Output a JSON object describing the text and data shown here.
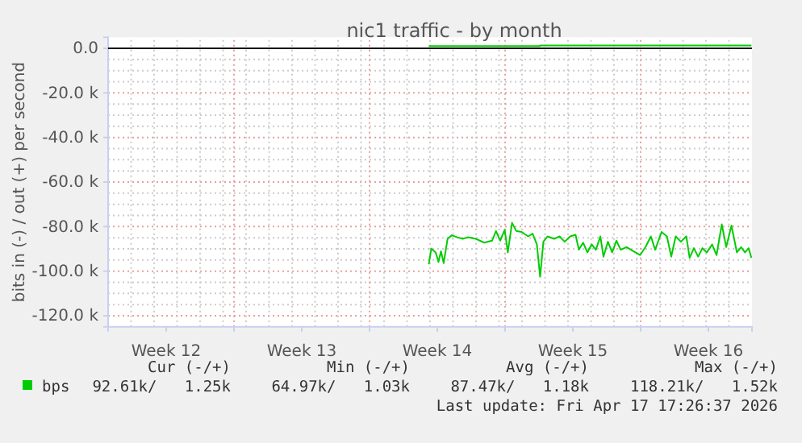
{
  "chart_data": {
    "type": "line",
    "title": "nic1 traffic - by month",
    "ylabel": "bits in (-) / out (+) per second",
    "xlim": [
      "2026-03-15T12:00",
      "2026-04-17T18:00"
    ],
    "xticks": [
      {
        "value": "2026-03-18T12:00",
        "label": "Week 12"
      },
      {
        "value": "2026-03-22",
        "label": null
      },
      {
        "value": "2026-03-25T12:00",
        "label": "Week 13"
      },
      {
        "value": "2026-03-29",
        "label": null
      },
      {
        "value": "2026-04-01T12:00",
        "label": "Week 14"
      },
      {
        "value": "2026-04-05",
        "label": null
      },
      {
        "value": "2026-04-08T12:00",
        "label": "Week 15"
      },
      {
        "value": "2026-04-12",
        "label": null
      },
      {
        "value": "2026-04-15T12:00",
        "label": "Week 16"
      }
    ],
    "ylim": [
      -125,
      5
    ],
    "yticks": [
      {
        "value": 0,
        "label": "0.0"
      },
      {
        "value": -20,
        "label": "-20.0 k"
      },
      {
        "value": -40,
        "label": "-40.0 k"
      },
      {
        "value": -60,
        "label": "-60.0 k"
      },
      {
        "value": -80,
        "label": "-80.0 k"
      },
      {
        "value": -100,
        "label": "-100.0 k"
      },
      {
        "value": -120,
        "label": "-120.0 k"
      }
    ],
    "grid": true,
    "legend": "bottom left",
    "ref_lines": [
      {
        "axis": "y",
        "value": 0,
        "color": "#000000"
      }
    ],
    "series": [
      {
        "name": "bps",
        "color": "#00cc00",
        "x": [
          "2026-04-01T01:26",
          "2026-04-01T04:34",
          "2026-04-01T10:05",
          "2026-04-01T13:26",
          "2026-04-01T16:34",
          "2026-04-01T19:55",
          "2026-04-02T00:43",
          "2026-04-02T06:00",
          "2026-04-02T12:43",
          "2026-04-02T19:26",
          "2026-04-03T01:55",
          "2026-04-03T12:00",
          "2026-04-03T22:05",
          "2026-04-04T07:55",
          "2026-04-04T12:43",
          "2026-04-04T18:00",
          "2026-04-04T23:31",
          "2026-04-05T03:22",
          "2026-04-05T08:38",
          "2026-04-05T13:55",
          "2026-04-05T20:38",
          "2026-04-06T04:34",
          "2026-04-06T10:05",
          "2026-04-06T15:22",
          "2026-04-06T19:26",
          "2026-04-06T23:31",
          "2026-04-07T04:34",
          "2026-04-07T12:43",
          "2026-04-07T19:26",
          "2026-04-08T01:55",
          "2026-04-08T08:38",
          "2026-04-08T15:22",
          "2026-04-08T19:26",
          "2026-04-09T00:43",
          "2026-04-09T06:00",
          "2026-04-09T11:17",
          "2026-04-09T16:34",
          "2026-04-09T22:05",
          "2026-04-10T01:55",
          "2026-04-10T07:26",
          "2026-04-10T12:43",
          "2026-04-10T18:00",
          "2026-04-10T23:17",
          "2026-04-11T06:43",
          "2026-04-11T15:22",
          "2026-04-11T23:17",
          "2026-04-12T06:00",
          "2026-04-12T12:43",
          "2026-04-12T18:00",
          "2026-04-13T01:55",
          "2026-04-13T08:38",
          "2026-04-13T13:55",
          "2026-04-13T19:26",
          "2026-04-14T01:55",
          "2026-04-14T08:38",
          "2026-04-14T12:43",
          "2026-04-14T18:00",
          "2026-04-14T23:17",
          "2026-04-15T04:34",
          "2026-04-15T10:05",
          "2026-04-15T16:34",
          "2026-04-15T22:05",
          "2026-04-16T04:34",
          "2026-04-16T10:05",
          "2026-04-16T16:34",
          "2026-04-16T23:17",
          "2026-04-17T04:34",
          "2026-04-17T09:22",
          "2026-04-17T13:55",
          "2026-04-17T17:17"
        ],
        "values": [
          -96.9,
          -89.9,
          -91.6,
          -95.9,
          -91.1,
          -96.4,
          -85.5,
          -83.9,
          -84.8,
          -85.5,
          -84.8,
          -85.5,
          -87.2,
          -86.3,
          -82,
          -86.3,
          -81.5,
          -91.6,
          -78.3,
          -82,
          -82.4,
          -84.4,
          -83.2,
          -88,
          -102.5,
          -86.8,
          -84.4,
          -85.5,
          -84.4,
          -86.8,
          -84.4,
          -83.7,
          -90.4,
          -87.2,
          -91.6,
          -88,
          -90.4,
          -84.4,
          -93.5,
          -86.8,
          -91.6,
          -86.3,
          -90.4,
          -89.2,
          -91.1,
          -92.8,
          -89.2,
          -84.4,
          -90.4,
          -82.4,
          -84.4,
          -93.5,
          -84.4,
          -86.8,
          -84.4,
          -94,
          -89.7,
          -93.5,
          -89.7,
          -91.6,
          -88,
          -92.8,
          -79,
          -89.2,
          -79.5,
          -91.6,
          -89.2,
          -91.6,
          -89.7,
          -94
        ]
      },
      {
        "color": "#00cc00",
        "x": [
          "2026-04-01T01:26",
          "2026-04-06T19:12",
          "2026-04-06T19:26",
          "2026-04-17T17:17"
        ],
        "values": [
          1.0,
          1.0,
          1.3,
          1.3
        ]
      }
    ],
    "annotations": [
      "Cur (-/+)",
      "Min (-/+)",
      "Avg (-/+)",
      "Max (-/+)",
      "92.61k/   1.25k",
      "64.97k/   1.03k",
      "87.47k/   1.18k",
      "118.21k/   1.52k",
      "Last update: Fri Apr 17 17:26:37 2026"
    ]
  }
}
